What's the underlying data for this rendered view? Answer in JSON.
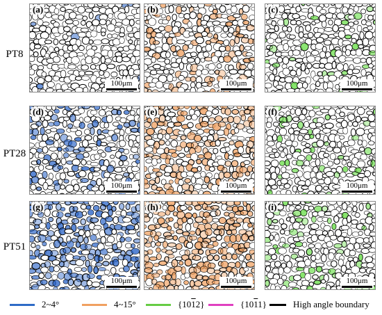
{
  "rows": [
    {
      "label": "PT8"
    },
    {
      "label": "PT28"
    },
    {
      "label": "PT51"
    }
  ],
  "panels": [
    {
      "letter": "(a)",
      "scale": "100μm",
      "tint": "#2a64c8",
      "tint_level": 0.04
    },
    {
      "letter": "(b)",
      "scale": "100μm",
      "tint": "#f0a060",
      "tint_level": 0.35
    },
    {
      "letter": "(c)",
      "scale": "100μm",
      "tint": "#66dd44",
      "tint_level": 0.1
    },
    {
      "letter": "(d)",
      "scale": "100μm",
      "tint": "#2a64c8",
      "tint_level": 0.35
    },
    {
      "letter": "(e)",
      "scale": "100μm",
      "tint": "#f0a060",
      "tint_level": 0.6
    },
    {
      "letter": "(f)",
      "scale": "100μm",
      "tint": "#66dd44",
      "tint_level": 0.15
    },
    {
      "letter": "(g)",
      "scale": "100μm",
      "tint": "#2a64c8",
      "tint_level": 0.7
    },
    {
      "letter": "(h)",
      "scale": "100μm",
      "tint": "#f0a060",
      "tint_level": 0.85
    },
    {
      "letter": "(i)",
      "scale": "100μm",
      "tint": "#66dd44",
      "tint_level": 0.25
    }
  ],
  "legend": {
    "items": [
      {
        "label": "2~4°",
        "color": "#2e6bc6"
      },
      {
        "label": "4~15°",
        "color": "#f0a060"
      },
      {
        "label_pre": "{10",
        "label_bar": "1",
        "label_post": "2}",
        "color": "#66cc44"
      },
      {
        "label_pre": "{10",
        "label_bar": "1",
        "label_post": "1}",
        "color": "#e040c0"
      },
      {
        "label": "High angle boundary",
        "color": "#000000"
      }
    ]
  },
  "colors": {
    "high_angle": "#000000",
    "background": "#ffffff"
  }
}
